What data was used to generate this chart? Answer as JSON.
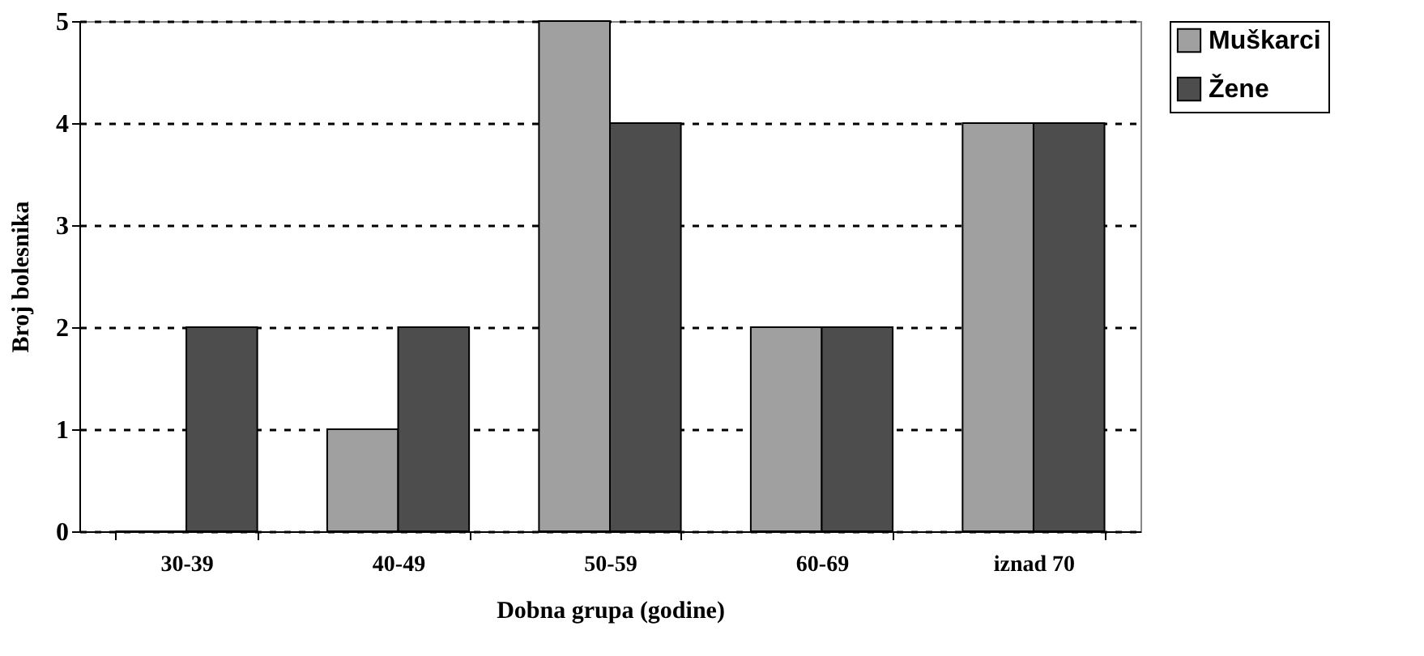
{
  "chart_data": {
    "type": "bar",
    "xlabel": "Dobna grupa (godine)",
    "ylabel": "Broj bolesnika",
    "categories": [
      "30-39",
      "40-49",
      "50-59",
      "60-69",
      "iznad 70"
    ],
    "series": [
      {
        "name": "Muškarci",
        "color": "#a0a0a0",
        "values": [
          0,
          1,
          5,
          2,
          4
        ]
      },
      {
        "name": "Žene",
        "color": "#4d4d4d",
        "values": [
          2,
          2,
          4,
          2,
          4
        ]
      }
    ],
    "ylim": [
      0,
      5
    ],
    "yticks": [
      0,
      1,
      2,
      3,
      4,
      5
    ],
    "grid": "y",
    "legend": "right"
  }
}
